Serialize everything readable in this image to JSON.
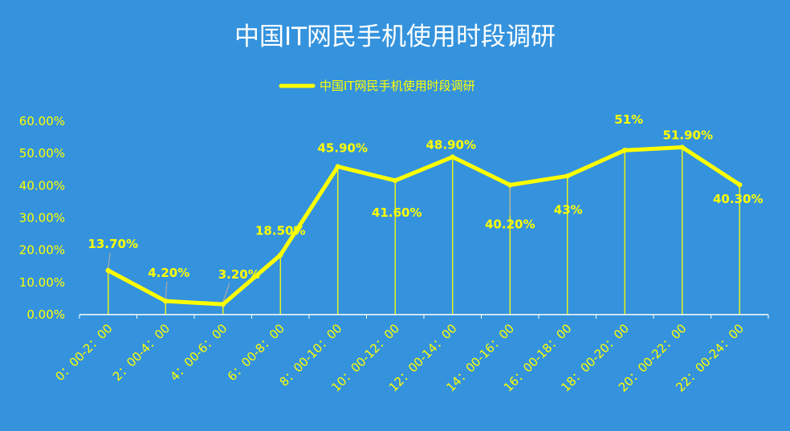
{
  "chart_data": {
    "type": "line",
    "title": "中国IT网民手机使用时段调研",
    "legend": {
      "position": "top",
      "entry": "中国IT网民手机使用时段调研"
    },
    "categories": [
      "0：00-2：00",
      "2：00-4：00",
      "4：00-6：00",
      "6：00-8：00",
      "8：00-10：00",
      "10：00-12：00",
      "12：00-14：00",
      "14：00-16：00",
      "16：00-18：00",
      "18：00-20：00",
      "20：00-22：00",
      "22：00-24：00"
    ],
    "series": [
      {
        "name": "中国IT网民手机使用时段调研",
        "values": [
          13.7,
          4.2,
          3.2,
          18.5,
          45.9,
          41.6,
          48.9,
          40.2,
          43,
          51,
          51.9,
          40.3
        ],
        "labels": [
          "13.70%",
          "4.20%",
          "3.20%",
          "18.50%",
          "45.90%",
          "41.60%",
          "48.90%",
          "40.20%",
          "43%",
          "51%",
          "51.90%",
          "40.30%"
        ]
      }
    ],
    "yticks": [
      "0.00%",
      "10.00%",
      "20.00%",
      "30.00%",
      "40.00%",
      "50.00%",
      "60.00%"
    ],
    "ylim": [
      0,
      60
    ],
    "grid": false,
    "drop_lines": true,
    "colors": {
      "background": "#3593dd",
      "line": "#ffff00",
      "text": "#ffff00",
      "title": "#ffffff",
      "axis": "#ffffff"
    }
  }
}
